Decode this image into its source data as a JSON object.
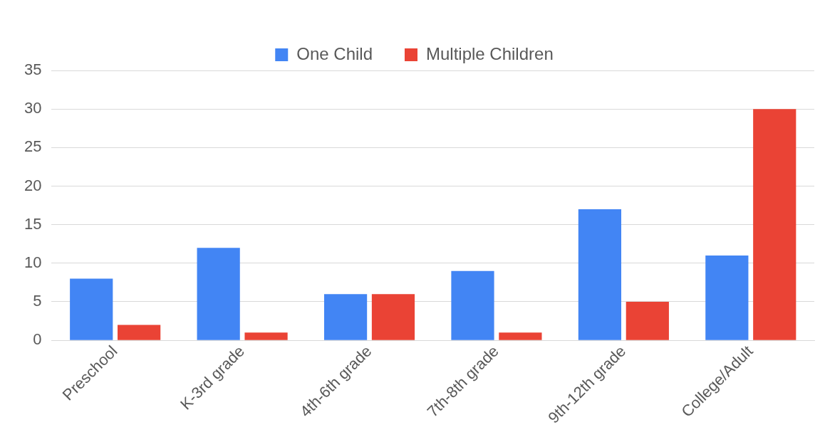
{
  "chart_data": {
    "type": "bar",
    "categories": [
      "Preschool",
      "K-3rd grade",
      "4th-6th grade",
      "7th-8th grade",
      "9th-12th grade",
      "College/Adult"
    ],
    "series": [
      {
        "name": "One Child",
        "color": "#4285f4",
        "values": [
          8,
          12,
          6,
          9,
          17,
          11
        ]
      },
      {
        "name": "Multiple Children",
        "color": "#ea4335",
        "values": [
          2,
          1,
          6,
          1,
          5,
          30
        ]
      }
    ],
    "ylim": [
      0,
      35
    ],
    "yticks": [
      0,
      5,
      10,
      15,
      20,
      25,
      30,
      35
    ],
    "grid": "y",
    "legend": "top"
  }
}
